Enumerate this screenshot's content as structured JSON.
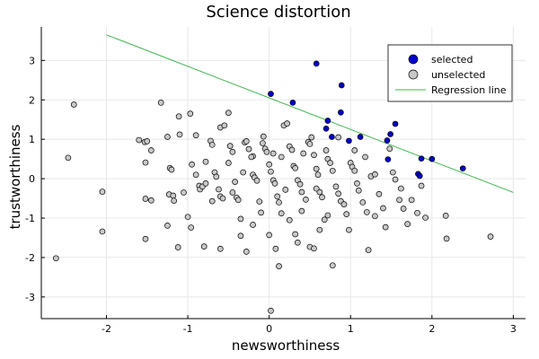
{
  "chart_data": {
    "type": "scatter",
    "title": "Science distortion",
    "xlabel": "newsworthiness",
    "ylabel": "trustworthiness",
    "xlim": [
      -2.8,
      3.15
    ],
    "ylim": [
      -3.55,
      3.85
    ],
    "xticks": [
      -2,
      -1,
      0,
      1,
      2,
      3
    ],
    "yticks": [
      -3,
      -2,
      -1,
      0,
      1,
      2,
      3
    ],
    "grid": true,
    "legend_position": "top-right",
    "colors": {
      "selected": "#0000cc",
      "unselected": "#c8c8c8",
      "regression": "#3cb44b"
    },
    "regression_line": {
      "name": "Regression line",
      "x": [
        -2.0,
        3.0
      ],
      "y": [
        3.65,
        -0.35
      ]
    },
    "series": [
      {
        "name": "selected",
        "points": [
          [
            0.02,
            2.15
          ],
          [
            0.29,
            1.93
          ],
          [
            0.58,
            2.92
          ],
          [
            0.89,
            2.37
          ],
          [
            0.88,
            1.68
          ],
          [
            0.72,
            1.47
          ],
          [
            0.7,
            1.27
          ],
          [
            0.77,
            1.06
          ],
          [
            0.98,
            0.96
          ],
          [
            1.12,
            1.06
          ],
          [
            1.45,
            0.97
          ],
          [
            1.49,
            1.13
          ],
          [
            1.55,
            1.39
          ],
          [
            1.46,
            0.49
          ],
          [
            1.83,
            0.12
          ],
          [
            1.87,
            0.51
          ],
          [
            2.0,
            0.5
          ],
          [
            2.38,
            0.26
          ],
          [
            1.85,
            0.07
          ]
        ]
      },
      {
        "name": "unselected",
        "points": [
          [
            -2.62,
            -2.02
          ],
          [
            -2.4,
            1.88
          ],
          [
            -2.47,
            0.53
          ],
          [
            -2.05,
            -0.33
          ],
          [
            -2.05,
            -1.34
          ],
          [
            -1.53,
            0.93
          ],
          [
            -1.5,
            0.95
          ],
          [
            -1.45,
            0.72
          ],
          [
            -1.52,
            0.41
          ],
          [
            -1.52,
            -0.51
          ],
          [
            -1.45,
            -0.55
          ],
          [
            -1.33,
            1.93
          ],
          [
            -1.25,
            1.06
          ],
          [
            -1.22,
            0.27
          ],
          [
            -1.2,
            0.23
          ],
          [
            -1.23,
            -0.4
          ],
          [
            -1.18,
            -0.43
          ],
          [
            -1.17,
            -0.56
          ],
          [
            -1.52,
            -1.53
          ],
          [
            -1.11,
            1.58
          ],
          [
            -1.1,
            1.12
          ],
          [
            -1.05,
            -0.35
          ],
          [
            -1.0,
            -0.97
          ],
          [
            -0.96,
            -1.24
          ],
          [
            -0.97,
            1.65
          ],
          [
            -0.9,
            1.1
          ],
          [
            -0.9,
            0.1
          ],
          [
            -0.86,
            -0.18
          ],
          [
            -0.85,
            -0.27
          ],
          [
            -0.82,
            -0.2
          ],
          [
            -0.78,
            -0.12
          ],
          [
            -0.78,
            0.43
          ],
          [
            -0.72,
            0.96
          ],
          [
            -0.7,
            0.86
          ],
          [
            -0.67,
            0.16
          ],
          [
            -0.65,
            0.05
          ],
          [
            -0.62,
            -0.27
          ],
          [
            -0.6,
            -0.45
          ],
          [
            -0.57,
            -0.5
          ],
          [
            -0.6,
            1.3
          ],
          [
            -0.55,
            1.35
          ],
          [
            -0.5,
            1.67
          ],
          [
            -0.48,
            0.83
          ],
          [
            -0.45,
            0.68
          ],
          [
            -0.45,
            -0.35
          ],
          [
            -0.4,
            -0.48
          ],
          [
            -0.38,
            -0.54
          ],
          [
            -0.35,
            -1.02
          ],
          [
            -0.3,
            0.92
          ],
          [
            -0.28,
            0.95
          ],
          [
            -0.25,
            0.75
          ],
          [
            -0.2,
            0.57
          ],
          [
            -0.2,
            0.1
          ],
          [
            -0.18,
            0.03
          ],
          [
            -0.15,
            -0.05
          ],
          [
            -0.12,
            -0.58
          ],
          [
            -0.1,
            -0.86
          ],
          [
            -0.07,
            1.07
          ],
          [
            -0.05,
            0.76
          ],
          [
            -0.03,
            0.68
          ],
          [
            0.0,
            0.36
          ],
          [
            0.02,
            0.18
          ],
          [
            0.05,
            -0.04
          ],
          [
            0.07,
            -0.12
          ],
          [
            0.1,
            -0.45
          ],
          [
            0.12,
            -0.6
          ],
          [
            0.15,
            -0.88
          ],
          [
            0.18,
            1.35
          ],
          [
            0.22,
            1.4
          ],
          [
            0.25,
            0.82
          ],
          [
            0.28,
            0.73
          ],
          [
            0.3,
            0.32
          ],
          [
            0.32,
            0.27
          ],
          [
            0.35,
            -0.04
          ],
          [
            0.38,
            -0.14
          ],
          [
            0.4,
            -0.34
          ],
          [
            0.45,
            -0.53
          ],
          [
            0.48,
            0.93
          ],
          [
            0.5,
            0.88
          ],
          [
            0.52,
            1.05
          ],
          [
            0.55,
            0.6
          ],
          [
            0.58,
            0.25
          ],
          [
            0.6,
            0.1
          ],
          [
            0.62,
            -0.34
          ],
          [
            0.65,
            -0.47
          ],
          [
            0.7,
            0.72
          ],
          [
            0.72,
            0.5
          ],
          [
            0.75,
            0.4
          ],
          [
            0.78,
            0.2
          ],
          [
            0.82,
            -0.2
          ],
          [
            0.85,
            -0.38
          ],
          [
            0.88,
            -0.57
          ],
          [
            0.92,
            -0.65
          ],
          [
            0.95,
            -0.9
          ],
          [
            1.0,
            0.4
          ],
          [
            1.02,
            0.3
          ],
          [
            1.05,
            0.2
          ],
          [
            1.08,
            -0.12
          ],
          [
            1.1,
            -0.3
          ],
          [
            1.15,
            -0.6
          ],
          [
            1.2,
            -0.85
          ],
          [
            1.22,
            -1.81
          ],
          [
            1.25,
            0.06
          ],
          [
            1.3,
            0.11
          ],
          [
            1.35,
            -0.39
          ],
          [
            1.4,
            -0.75
          ],
          [
            1.43,
            -1.23
          ],
          [
            1.48,
            0.76
          ],
          [
            1.52,
            0.16
          ],
          [
            1.55,
            -0.02
          ],
          [
            1.6,
            -0.54
          ],
          [
            1.65,
            -0.76
          ],
          [
            1.7,
            -1.15
          ],
          [
            1.75,
            -0.54
          ],
          [
            1.82,
            -0.87
          ],
          [
            1.87,
            -0.18
          ],
          [
            1.92,
            -0.99
          ],
          [
            2.17,
            -0.94
          ],
          [
            2.18,
            -1.52
          ],
          [
            2.72,
            -1.47
          ],
          [
            -1.25,
            -1.19
          ],
          [
            -1.12,
            -1.74
          ],
          [
            -0.8,
            -1.72
          ],
          [
            -0.6,
            -1.78
          ],
          [
            -0.35,
            -1.45
          ],
          [
            -0.28,
            -1.85
          ],
          [
            -0.2,
            -1.17
          ],
          [
            0.0,
            -1.43
          ],
          [
            0.08,
            -1.78
          ],
          [
            0.12,
            -2.22
          ],
          [
            0.25,
            -1.05
          ],
          [
            0.32,
            -1.41
          ],
          [
            0.35,
            -1.62
          ],
          [
            0.5,
            -1.73
          ],
          [
            0.55,
            -1.77
          ],
          [
            0.62,
            -1.3
          ],
          [
            0.68,
            -1.04
          ],
          [
            0.78,
            -2.2
          ],
          [
            0.98,
            -1.3
          ],
          [
            0.02,
            -3.35
          ],
          [
            -0.22,
            0.55
          ],
          [
            -0.5,
            0.4
          ],
          [
            -0.7,
            -0.57
          ],
          [
            -0.95,
            0.36
          ],
          [
            0.42,
            0.64
          ],
          [
            0.85,
            1.05
          ],
          [
            1.05,
            0.72
          ],
          [
            -1.6,
            0.98
          ],
          [
            -0.08,
            0.9
          ],
          [
            0.15,
            0.55
          ],
          [
            0.4,
            -0.82
          ],
          [
            0.58,
            -0.25
          ],
          [
            0.72,
            -0.93
          ],
          [
            1.18,
            0.55
          ],
          [
            1.3,
            -0.95
          ],
          [
            1.62,
            -0.25
          ],
          [
            -0.42,
            -0.08
          ],
          [
            -0.32,
            0.16
          ],
          [
            0.05,
            0.64
          ],
          [
            0.2,
            -0.28
          ]
        ]
      }
    ]
  }
}
